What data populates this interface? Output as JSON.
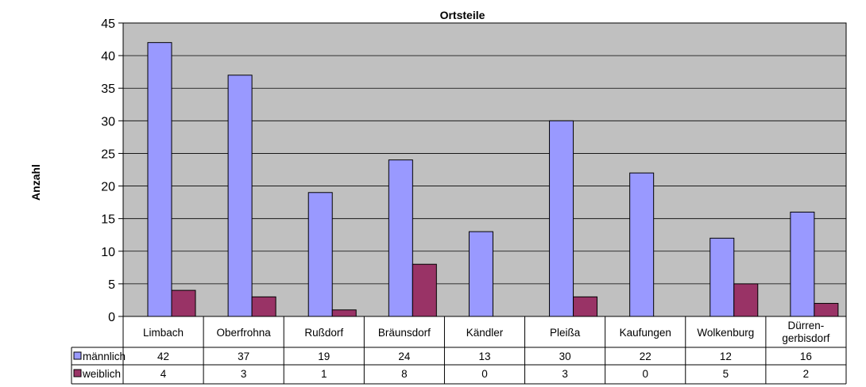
{
  "chart_data": {
    "type": "bar",
    "title": "Ortsteile",
    "ylabel": "Anzahl",
    "xlabel": "",
    "ylim": [
      0,
      45
    ],
    "yticks": [
      0,
      5,
      10,
      15,
      20,
      25,
      30,
      35,
      40,
      45
    ],
    "grid": true,
    "categories": [
      "Limbach",
      "Oberfrohna",
      "Rußdorf",
      "Bräunsdorf",
      "Kändler",
      "Pleißa",
      "Kaufungen",
      "Wolkenburg",
      "Dürren-\ngerbisdorf"
    ],
    "series": [
      {
        "name": "männlich",
        "values": [
          42,
          37,
          19,
          24,
          13,
          30,
          22,
          12,
          16
        ],
        "color": "#9999FF"
      },
      {
        "name": "weiblich",
        "values": [
          4,
          3,
          1,
          8,
          0,
          3,
          0,
          5,
          2
        ],
        "color": "#993366"
      }
    ],
    "plot_background": "#C0C0C0",
    "legend": "data-table"
  }
}
